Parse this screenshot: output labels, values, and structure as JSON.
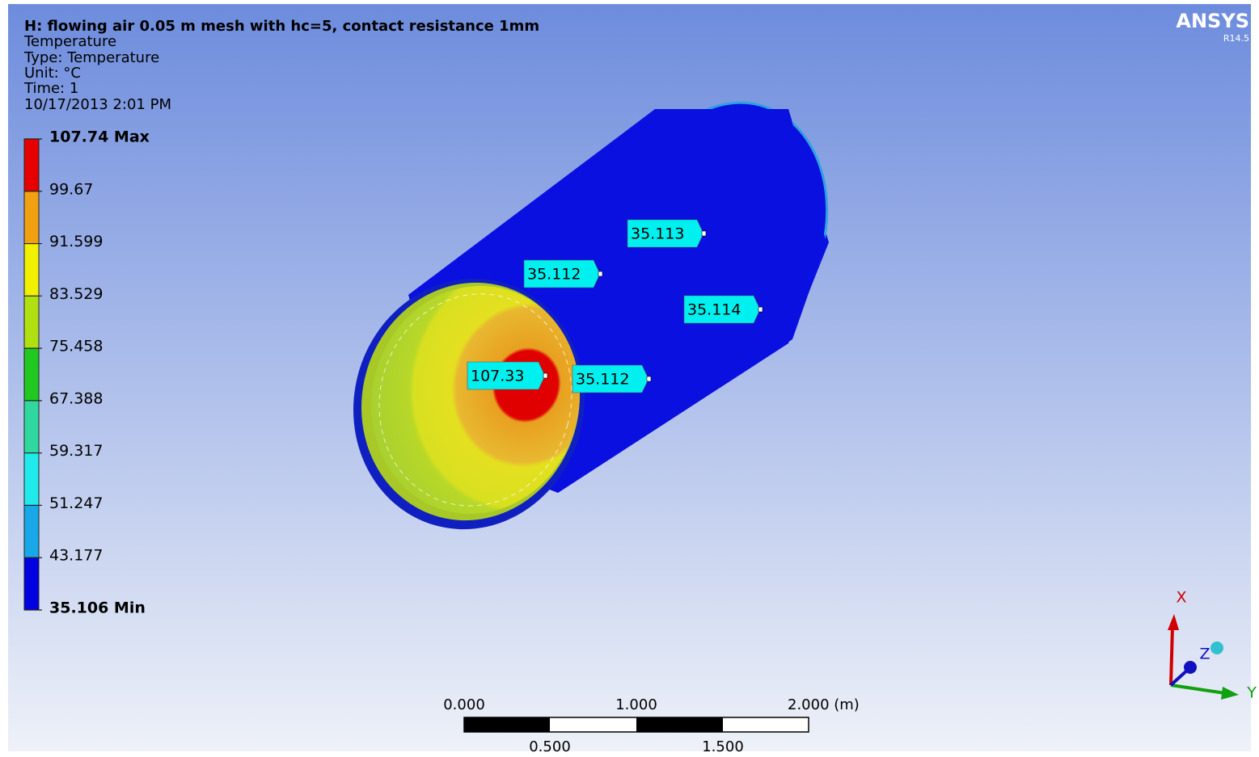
{
  "header": {
    "title": "H: flowing air 0.05 m mesh with hc=5, contact resistance 1mm",
    "lines": [
      "Temperature",
      "Type: Temperature",
      "Unit: °C",
      "Time: 1",
      "10/17/2013 2:01 PM"
    ]
  },
  "logo": {
    "name": "ANSYS",
    "version": "R14.5"
  },
  "legend": {
    "labels": [
      "107.74 Max",
      "99.67",
      "91.599",
      "83.529",
      "75.458",
      "67.388",
      "59.317",
      "51.247",
      "43.177",
      "35.106 Min"
    ],
    "colors": [
      "#e60000",
      "#f0a010",
      "#f0f000",
      "#b0e010",
      "#20c820",
      "#30d8a0",
      "#20eaea",
      "#18a8e8",
      "#0000e0"
    ]
  },
  "probes": [
    "35.113",
    "35.112",
    "35.114",
    "107.33",
    "35.112"
  ],
  "scale": {
    "top": [
      "0.000",
      "1.000",
      "2.000 (m)"
    ],
    "bottom": [
      "0.500",
      "1.500"
    ]
  },
  "triad": {
    "x": "X",
    "y": "Y",
    "z": "Z"
  }
}
